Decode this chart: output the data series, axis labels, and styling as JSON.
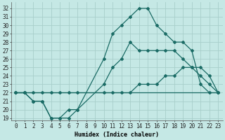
{
  "xlabel": "Humidex (Indice chaleur)",
  "bg_color": "#c5e8e5",
  "grid_color": "#a8ceca",
  "line_color": "#1a6b65",
  "xlim": [
    -0.5,
    23.5
  ],
  "ylim": [
    18.7,
    32.7
  ],
  "xticks": [
    0,
    1,
    2,
    3,
    4,
    5,
    6,
    7,
    8,
    9,
    10,
    11,
    12,
    13,
    14,
    15,
    16,
    17,
    18,
    19,
    20,
    21,
    22,
    23
  ],
  "yticks": [
    19,
    20,
    21,
    22,
    23,
    24,
    25,
    26,
    27,
    28,
    29,
    30,
    31,
    32
  ],
  "line_flat": {
    "x": [
      0,
      23
    ],
    "y": [
      22,
      22
    ]
  },
  "line_slow": {
    "x": [
      0,
      1,
      2,
      3,
      4,
      5,
      6,
      7,
      10,
      11,
      12,
      13,
      14,
      15,
      16,
      17,
      18,
      19,
      20,
      21,
      22,
      23
    ],
    "y": [
      22,
      22,
      22,
      22,
      22,
      22,
      22,
      22,
      22,
      22,
      22,
      22,
      23,
      23,
      23,
      24,
      24,
      25,
      25,
      25,
      24,
      22
    ]
  },
  "line_dip": {
    "x": [
      0,
      1,
      2,
      3,
      4,
      5,
      6,
      7,
      10,
      11,
      12,
      13,
      14,
      15,
      16,
      17,
      18,
      19,
      20,
      21,
      22,
      23
    ],
    "y": [
      22,
      22,
      21,
      21,
      19,
      19,
      19,
      20,
      23,
      25,
      26,
      28,
      27,
      27,
      27,
      27,
      27,
      26,
      25,
      24,
      23,
      22
    ]
  },
  "line_peak": {
    "x": [
      0,
      1,
      2,
      3,
      4,
      5,
      6,
      7,
      10,
      11,
      12,
      13,
      14,
      15,
      16,
      17,
      18,
      19,
      20,
      21,
      22,
      23
    ],
    "y": [
      22,
      22,
      21,
      21,
      19,
      19,
      20,
      20,
      26,
      29,
      30,
      31,
      32,
      32,
      30,
      29,
      28,
      28,
      27,
      23,
      22,
      22
    ]
  }
}
